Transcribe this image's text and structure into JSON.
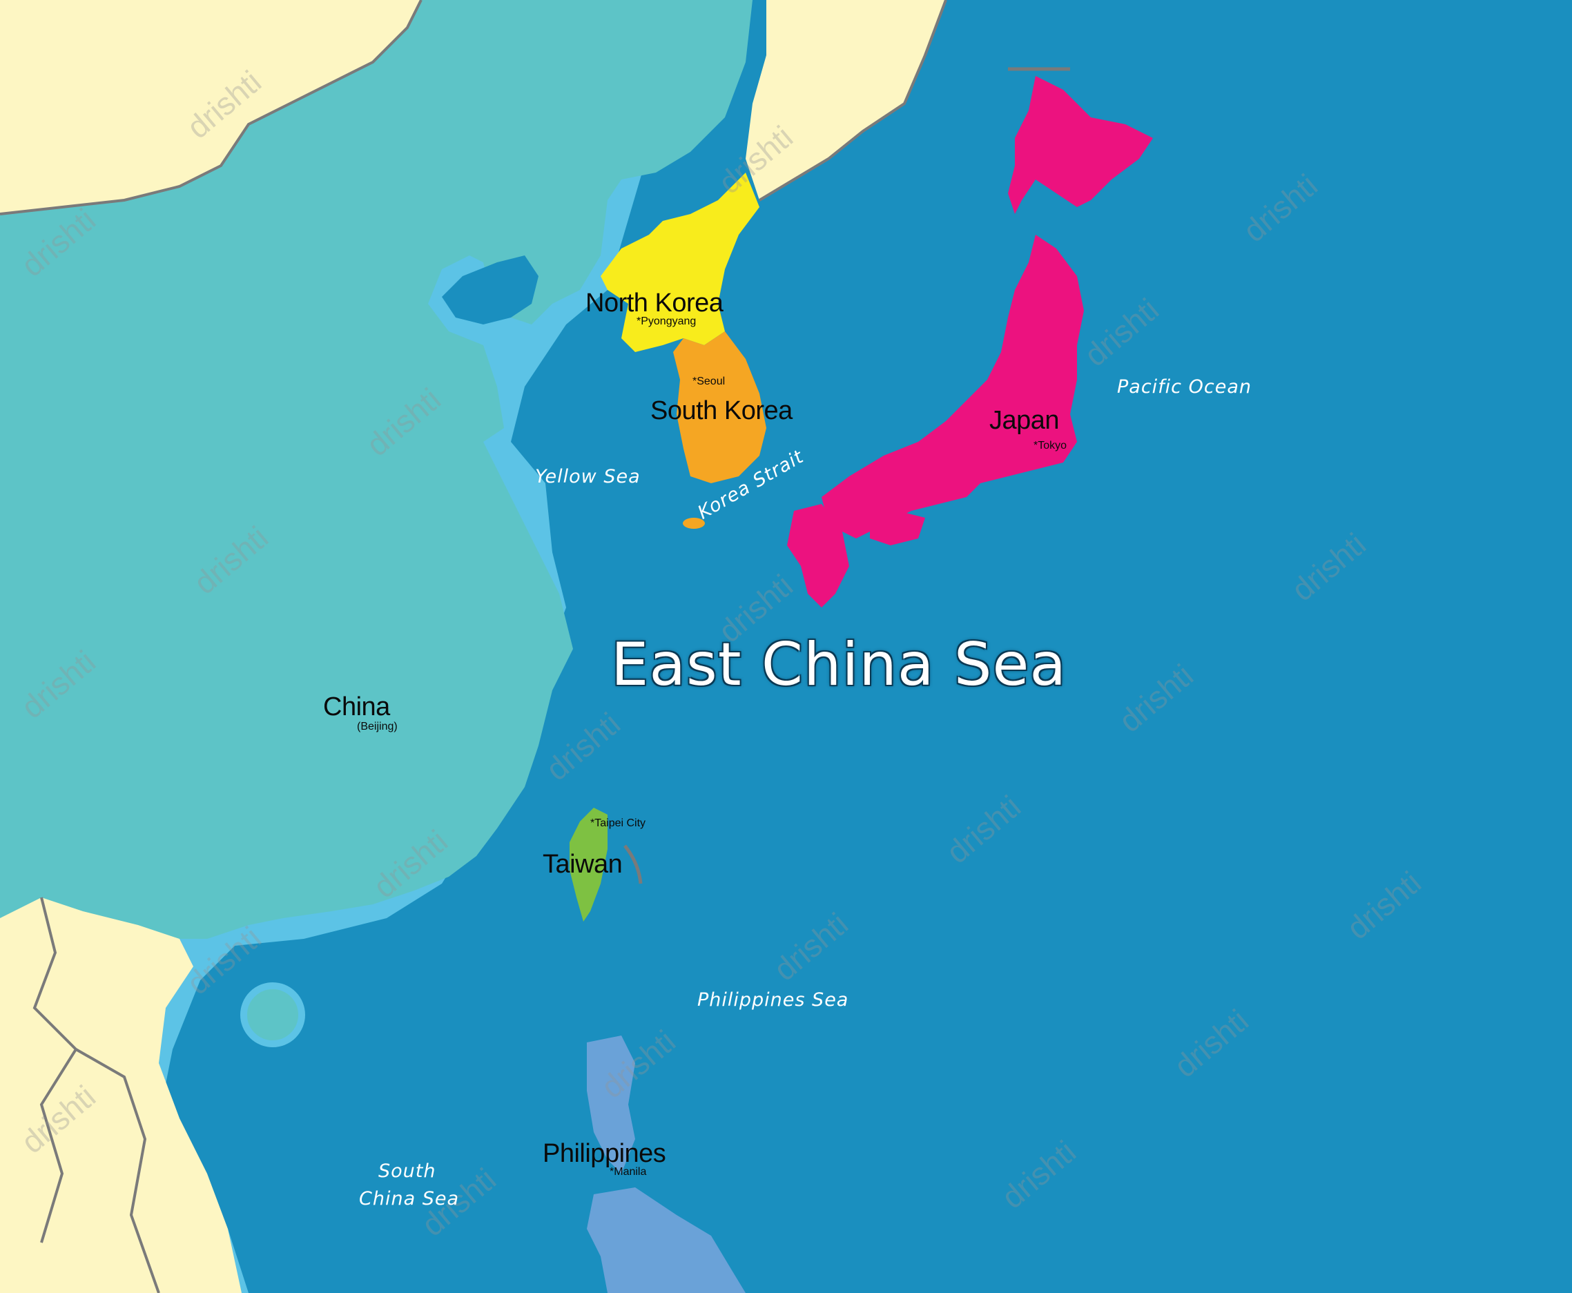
{
  "colors": {
    "ocean": "#1a8fbf",
    "shelf": "#5cc3e6",
    "china": "#5dc4c7",
    "other_land": "#fdf6c3",
    "north_korea": "#f8ec1c",
    "south_korea": "#f5a623",
    "japan": "#ec127f",
    "taiwan": "#7ec142",
    "philippines": "#6aa2d8",
    "border": "#7a7a7a"
  },
  "title": "East China Sea",
  "countries": {
    "north_korea": {
      "name": "North Korea",
      "capital": "Pyongyang"
    },
    "south_korea": {
      "name": "South Korea",
      "capital": "Seoul"
    },
    "japan": {
      "name": "Japan",
      "capital": "Tokyo"
    },
    "china": {
      "name": "China",
      "capital": "(Beijing)"
    },
    "taiwan": {
      "name": "Taiwan",
      "capital": "Taipei City"
    },
    "philippines": {
      "name": "Philippines",
      "capital": "Manila"
    }
  },
  "water_bodies": {
    "yellow_sea": "Yellow Sea",
    "korea_strait": "Korea Strait",
    "pacific_ocean": "Pacific Ocean",
    "philippines_sea": "Philippines Sea",
    "south_china_sea_line1": "South",
    "south_china_sea_line2": "China Sea"
  },
  "capital_marker": "*",
  "watermark": "drishti"
}
